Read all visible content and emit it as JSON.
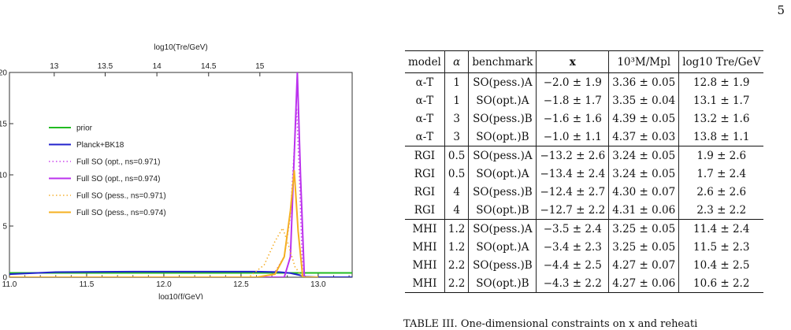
{
  "page_number": "5",
  "chart_data": {
    "type": "line",
    "top_axis_label": "log10(Tre/GeV)",
    "xlabel": "log10(f/GeV)",
    "ylabel": "",
    "xlim": [
      11.0,
      13.22
    ],
    "ylim": [
      0,
      20
    ],
    "x_ticks": [
      "11.0",
      "11.5",
      "12.0",
      "12.5",
      "13.0"
    ],
    "y_ticks": [
      "0",
      "5",
      "10",
      "15",
      "20"
    ],
    "top_ticks": [
      "13",
      "13.5",
      "14",
      "14.5",
      "15"
    ],
    "top_tick_positions_x": [
      11.29,
      11.62,
      11.955,
      12.29,
      12.622
    ],
    "legend_position": "left",
    "series": [
      {
        "name": "prior",
        "color": "#22bb22",
        "dash": "solid",
        "x": [
          11.0,
          13.22
        ],
        "y": [
          0.42,
          0.42
        ]
      },
      {
        "name": "Planck+BK18",
        "color": "#2222cc",
        "dash": "solid",
        "x": [
          11.0,
          11.3,
          11.8,
          12.3,
          12.6,
          12.75,
          12.82,
          12.88,
          12.92,
          13.0,
          13.22
        ],
        "y": [
          0.3,
          0.5,
          0.55,
          0.55,
          0.55,
          0.5,
          0.4,
          0.2,
          0.05,
          0.0,
          0.0
        ]
      },
      {
        "name": "Full SO (opt., ns=0.971)",
        "color": "#cc44ee",
        "dash": "dotted",
        "x": [
          11.0,
          12.7,
          12.78,
          12.82,
          12.86,
          12.88,
          12.9,
          13.0
        ],
        "y": [
          0.0,
          0.0,
          2.0,
          6.0,
          16.5,
          9.0,
          0.0,
          0.0
        ]
      },
      {
        "name": "Full SO (opt., ns=0.974)",
        "color": "#bb33ee",
        "dash": "solid",
        "x": [
          11.0,
          12.78,
          12.82,
          12.845,
          12.865,
          12.885,
          12.91,
          13.0
        ],
        "y": [
          0.0,
          0.0,
          2.0,
          12.0,
          20.0,
          10.0,
          0.0,
          0.0
        ]
      },
      {
        "name": "Full SO (pess., ns=0.971)",
        "color": "#f5b030",
        "dash": "dotted",
        "x": [
          11.0,
          12.55,
          12.65,
          12.72,
          12.77,
          12.8,
          12.85,
          12.9,
          13.0
        ],
        "y": [
          0.0,
          0.0,
          1.2,
          3.5,
          4.8,
          3.5,
          1.0,
          0.0,
          0.0
        ]
      },
      {
        "name": "Full SO (pess., ns=0.974)",
        "color": "#f5b020",
        "dash": "solid",
        "x": [
          11.0,
          12.6,
          12.72,
          12.78,
          12.82,
          12.845,
          12.87,
          12.9,
          13.0
        ],
        "y": [
          0.0,
          0.0,
          0.3,
          2.0,
          6.5,
          10.4,
          4.5,
          0.0,
          0.0
        ]
      }
    ]
  },
  "table": {
    "headers": [
      "model",
      "α",
      "benchmark",
      "x",
      "10³M/Mpl",
      "log10 Tre/GeV"
    ],
    "groups": [
      [
        [
          "α-T",
          "1",
          "SO(pess.)A",
          "−2.0 ± 1.9",
          "3.36 ± 0.05",
          "12.8 ± 1.9"
        ],
        [
          "α-T",
          "1",
          "SO(opt.)A",
          "−1.8 ± 1.7",
          "3.35 ± 0.04",
          "13.1 ± 1.7"
        ],
        [
          "α-T",
          "3",
          "SO(pess.)B",
          "−1.6 ± 1.6",
          "4.39 ± 0.05",
          "13.2 ± 1.6"
        ],
        [
          "α-T",
          "3",
          "SO(opt.)B",
          "−1.0 ± 1.1",
          "4.37 ± 0.03",
          "13.8 ± 1.1"
        ]
      ],
      [
        [
          "RGI",
          "0.5",
          "SO(pess.)A",
          "−13.2 ± 2.6",
          "3.24 ± 0.05",
          "1.9 ± 2.6"
        ],
        [
          "RGI",
          "0.5",
          "SO(opt.)A",
          "−13.4 ± 2.4",
          "3.24 ± 0.05",
          "1.7 ± 2.4"
        ],
        [
          "RGI",
          "4",
          "SO(pess.)B",
          "−12.4 ± 2.7",
          "4.30 ± 0.07",
          "2.6 ± 2.6"
        ],
        [
          "RGI",
          "4",
          "SO(opt.)B",
          "−12.7 ± 2.2",
          "4.31 ± 0.06",
          "2.3 ± 2.2"
        ]
      ],
      [
        [
          "MHI",
          "1.2",
          "SO(pess.)A",
          "−3.5 ± 2.4",
          "3.25 ± 0.05",
          "11.4 ± 2.4"
        ],
        [
          "MHI",
          "1.2",
          "SO(opt.)A",
          "−3.4 ± 2.3",
          "3.25 ± 0.05",
          "11.5 ± 2.3"
        ],
        [
          "MHI",
          "2.2",
          "SO(pess.)B",
          "−4.4 ± 2.5",
          "4.27 ± 0.07",
          "10.4 ± 2.5"
        ],
        [
          "MHI",
          "2.2",
          "SO(opt.)B",
          "−4.3 ± 2.2",
          "4.27 ± 0.06",
          "10.6 ± 2.2"
        ]
      ]
    ]
  },
  "caption": "TABLE III. One-dimensional constraints on x and reheati"
}
